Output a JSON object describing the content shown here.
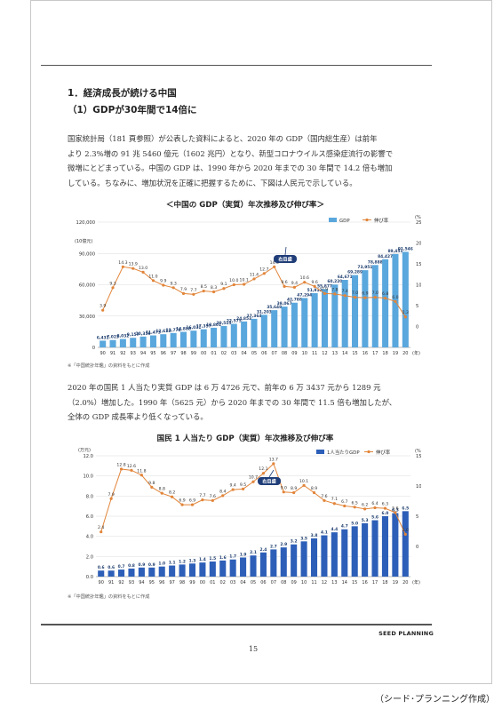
{
  "section_heading": "1．経済成長が続ける中国",
  "subsection_heading": "（1）GDPが30年間で14倍に",
  "paragraph1": [
    "国家統計局（181 頁参照）が公表した資料によると、2020 年の GDP（国内総生産）は前年",
    "より 2.3%増の 91 兆 5460 億元（1602 兆円）となり、新型コロナウイルス感染症流行の影響で",
    "微増にとどまっている。中国の GDP は、1990 年から 2020 年までの 30 年間で 14.2 倍も増加",
    "している。ちなみに、増加状況を正確に把握するために、下図は人民元で示している。"
  ],
  "paragraph2": [
    "2020 年の国民 1 人当たり実質 GDP は 6 万 4726 元で、前年の 6 万 3437 元から 1289 元",
    "（2.0%）増加した。1990 年（5625 元）から 2020 年までの 30 年間で 11.5 倍も増加したが、",
    "全体の GDP 成長率より低くなっている。"
  ],
  "footer_brand": "SEED PLANNING",
  "page_number": "15",
  "caption": "（シード･プランニング作成）",
  "colors": {
    "bar": "#5aa7dd",
    "bar2": "#2d5fb8",
    "line": "#e2853a",
    "callout": "#1f3d78"
  },
  "chart_data": [
    {
      "type": "bar",
      "title": "＜中国の GDP（実質）年次推移及び伸び率＞",
      "unit_left": "(10億元)",
      "unit_right": "(%)",
      "legend_bar": "GDP",
      "legend_line": "伸び率",
      "callout": "右目盛",
      "note": "※「中国統計年鑑」の資料をもとに作成",
      "x_unit": "(年)",
      "categories": [
        "90",
        "91",
        "92",
        "93",
        "94",
        "95",
        "96",
        "97",
        "98",
        "99",
        "00",
        "01",
        "02",
        "03",
        "04",
        "05",
        "06",
        "07",
        "08",
        "09",
        "10",
        "11",
        "12",
        "13",
        "14",
        "15",
        "16",
        "17",
        "18",
        "19",
        "20"
      ],
      "bar_values": [
        6431,
        7023,
        8032,
        9157,
        10359,
        11473,
        12613,
        13778,
        14888,
        16031,
        17357,
        18801,
        20515,
        22575,
        24853,
        27364,
        31203,
        35648,
        39067,
        42788,
        47294,
        51912,
        55877,
        60220,
        64671,
        69289,
        73951,
        78888,
        84427,
        89451,
        91546
      ],
      "bar_labels": [
        "6,431",
        "7,023",
        "8,032",
        "9,157",
        "10,359",
        "11,473",
        "12,613",
        "13,778",
        "14,888",
        "16,031",
        "17,357",
        "18,801",
        "20,515",
        "22,575",
        "24,853",
        "27,364",
        "31,203",
        "35,648",
        "39,067",
        "42,788",
        "47,294",
        "51,912",
        "55,877",
        "60,220",
        "64,671",
        "69,289",
        "73,951",
        "78,888",
        "84,427",
        "89,451",
        "91,546"
      ],
      "line_values": [
        3.9,
        9.3,
        14.3,
        13.9,
        13.0,
        11.0,
        9.9,
        9.3,
        7.9,
        7.7,
        8.5,
        8.3,
        9.1,
        10.0,
        10.1,
        11.4,
        12.7,
        14.3,
        9.6,
        9.4,
        10.6,
        9.6,
        7.9,
        7.8,
        7.4,
        7.0,
        6.9,
        7.0,
        6.8,
        6.0,
        2.3
      ],
      "line_labels": [
        "3.9",
        "9.3",
        "14.3",
        "13.9",
        "13.0",
        "11.0",
        "9.9",
        "9.3",
        "7.9",
        "7.7",
        "8.5",
        "8.3",
        "9.1",
        "10.0",
        "10.1",
        "11.4",
        "12.7",
        "14.3",
        "9.6",
        "9.4",
        "10.6",
        "9.6",
        "7.9",
        "7.8",
        "7.4",
        "7.0",
        "6.9",
        "7.0",
        "6.8",
        "6.0",
        "2.3"
      ],
      "y_left_ticks": [
        "0",
        "30,000",
        "60,000",
        "90,000",
        "120,000"
      ],
      "y_left_max": 120000,
      "y_right_ticks": [
        "0",
        "5",
        "10",
        "15",
        "20",
        "25"
      ],
      "y_right_min": -5,
      "y_right_max": 25
    },
    {
      "type": "bar",
      "title": "国民 1 人当たり GDP（実質）年次推移及び伸び率",
      "unit_left": "(万元)",
      "unit_right": "(%)",
      "legend_bar": "1人当たりGDP",
      "legend_line": "伸び率",
      "callout": "右目盛",
      "note": "※「中国統計年鑑」の資料をもとに作成",
      "x_unit": "(年)",
      "categories": [
        "90",
        "91",
        "92",
        "93",
        "94",
        "95",
        "96",
        "97",
        "98",
        "99",
        "00",
        "01",
        "02",
        "03",
        "04",
        "05",
        "06",
        "07",
        "08",
        "09",
        "10",
        "11",
        "12",
        "13",
        "14",
        "15",
        "16",
        "17",
        "18",
        "19",
        "20"
      ],
      "bar_values": [
        0.6,
        0.6,
        0.7,
        0.8,
        0.9,
        0.9,
        1.0,
        1.1,
        1.2,
        1.3,
        1.4,
        1.5,
        1.6,
        1.7,
        1.9,
        2.1,
        2.4,
        2.7,
        2.9,
        3.2,
        3.5,
        3.8,
        4.1,
        4.4,
        4.7,
        5.0,
        5.3,
        5.6,
        6.0,
        6.3,
        6.5
      ],
      "bar_labels": [
        "0.6",
        "0.6",
        "0.7",
        "0.8",
        "0.9",
        "0.9",
        "1.0",
        "1.1",
        "1.2",
        "1.3",
        "1.4",
        "1.5",
        "1.6",
        "1.7",
        "1.9",
        "2.1",
        "2.4",
        "2.7",
        "2.9",
        "3.2",
        "3.5",
        "3.8",
        "4.1",
        "4.4",
        "4.7",
        "5.0",
        "5.3",
        "5.6",
        "6.0",
        "6.3",
        "6.5"
      ],
      "line_values": [
        2.4,
        7.9,
        12.8,
        12.6,
        11.8,
        9.8,
        8.8,
        8.2,
        6.9,
        6.9,
        7.7,
        7.6,
        8.4,
        9.4,
        9.5,
        10.7,
        12.1,
        13.7,
        9.0,
        8.9,
        10.1,
        8.9,
        7.6,
        7.1,
        6.7,
        6.5,
        6.2,
        6.4,
        6.3,
        5.6,
        2.0
      ],
      "line_labels": [
        "2.4",
        "7.9",
        "12.8",
        "12.6",
        "11.8",
        "9.8",
        "8.8",
        "8.2",
        "6.9",
        "6.9",
        "7.7",
        "7.6",
        "8.4",
        "9.4",
        "9.5",
        "10.7",
        "12.1",
        "13.7",
        "9.0",
        "8.9",
        "10.1",
        "8.9",
        "7.6",
        "7.1",
        "6.7",
        "6.5",
        "6.2",
        "6.4",
        "6.3",
        "5.6",
        "2.0"
      ],
      "y_left_ticks": [
        "0.0",
        "2.0",
        "4.0",
        "6.0",
        "8.0",
        "10.0",
        "12.0"
      ],
      "y_left_max": 12,
      "y_right_ticks": [
        "0",
        "5",
        "10",
        "15"
      ],
      "y_right_min": -5,
      "y_right_max": 15
    }
  ]
}
